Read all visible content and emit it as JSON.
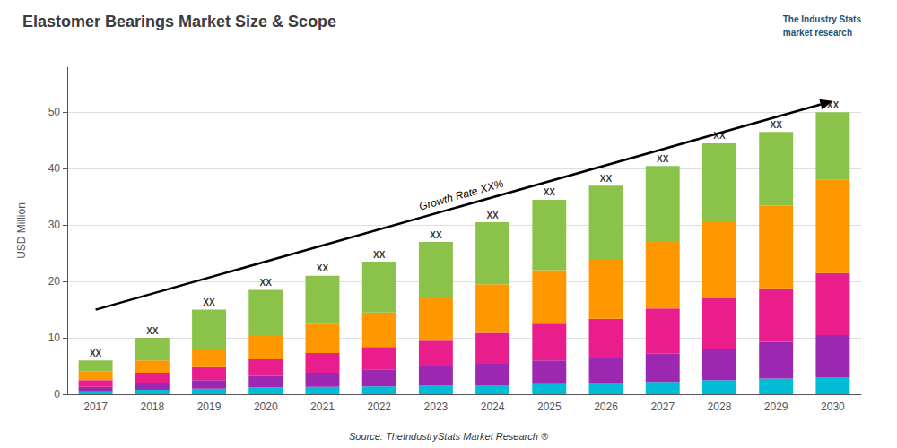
{
  "chart_data": {
    "type": "bar",
    "stacked": true,
    "title": "Elastomer Bearings Market Size & Scope",
    "ylabel": "USD Million",
    "source": "Source: TheIndustryStats Market Research ®",
    "logo_text": "The Industry Stats\nmarket research",
    "categories": [
      "2017",
      "2018",
      "2019",
      "2020",
      "2021",
      "2022",
      "2023",
      "2024",
      "2025",
      "2026",
      "2027",
      "2028",
      "2029",
      "2030"
    ],
    "series": [
      {
        "color": "#00bcd4",
        "values": [
          0.5,
          0.8,
          1.0,
          1.2,
          1.3,
          1.4,
          1.5,
          1.6,
          1.8,
          1.9,
          2.2,
          2.5,
          2.8,
          3.0
        ]
      },
      {
        "color": "#9c27b0",
        "values": [
          0.8,
          1.2,
          1.5,
          2.0,
          2.5,
          3.0,
          3.5,
          3.8,
          4.2,
          4.5,
          5.0,
          5.5,
          6.5,
          7.5
        ]
      },
      {
        "color": "#e91e8c",
        "values": [
          1.2,
          1.8,
          2.3,
          3.0,
          3.5,
          4.0,
          4.5,
          5.5,
          6.5,
          7.0,
          8.0,
          9.0,
          9.5,
          11.0
        ]
      },
      {
        "color": "#ff9800",
        "values": [
          1.5,
          2.2,
          3.2,
          4.3,
          5.2,
          6.1,
          7.5,
          8.6,
          9.5,
          10.6,
          11.8,
          13.5,
          14.7,
          16.5
        ]
      },
      {
        "color": "#8bc34a",
        "values": [
          2.0,
          4.0,
          7.0,
          8.0,
          8.5,
          9.0,
          10.0,
          11.0,
          12.5,
          13.0,
          13.5,
          14.0,
          13.0,
          12.0
        ]
      }
    ],
    "annotations": [
      {
        "text": "XX",
        "x": "2017",
        "y": 6
      },
      {
        "text": "XX",
        "x": "2018",
        "y": 10
      },
      {
        "text": "XX",
        "x": "2019",
        "y": 15
      },
      {
        "text": "XX",
        "x": "2020",
        "y": 18.5
      },
      {
        "text": "XX",
        "x": "2021",
        "y": 21
      },
      {
        "text": "XX",
        "x": "2022",
        "y": 23.5
      },
      {
        "text": "XX",
        "x": "2023",
        "y": 27
      },
      {
        "text": "XX",
        "x": "2024",
        "y": 30.5
      },
      {
        "text": "XX",
        "x": "2025",
        "y": 34.5
      },
      {
        "text": "XX",
        "x": "2026",
        "y": 37
      },
      {
        "text": "XX",
        "x": "2027",
        "y": 40.5
      },
      {
        "text": "XX",
        "x": "2028",
        "y": 44.5
      },
      {
        "text": "XX",
        "x": "2029",
        "y": 46.5
      },
      {
        "text": "XX",
        "x": "2030",
        "y": 50
      }
    ],
    "arrow": {
      "text": "Growth Rate XX%",
      "start": [
        "2017",
        15
      ],
      "end": [
        "2030",
        52
      ]
    },
    "ylim": [
      0,
      58
    ],
    "yticks": [
      0,
      10,
      20,
      30,
      40,
      50
    ],
    "grid": true
  }
}
